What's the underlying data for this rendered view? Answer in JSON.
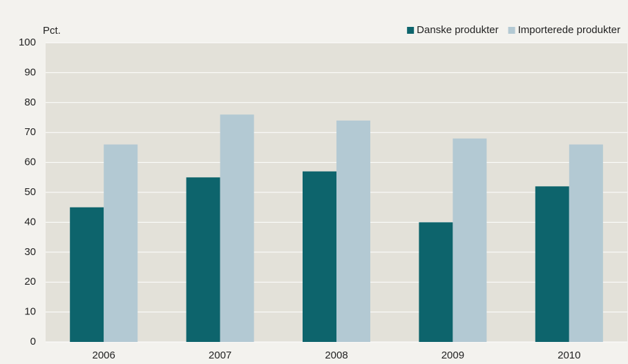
{
  "chart_data": {
    "type": "bar",
    "y_label": "Pct.",
    "categories": [
      "2006",
      "2007",
      "2008",
      "2009",
      "2010"
    ],
    "series": [
      {
        "name": "Danske produkter",
        "color": "#0d646c",
        "values": [
          45,
          55,
          57,
          40,
          52
        ]
      },
      {
        "name": "Importerede produkter",
        "color": "#b3c9d3",
        "values": [
          66,
          76,
          74,
          68,
          66
        ]
      }
    ],
    "ylim": [
      0,
      100
    ],
    "yticks": [
      0,
      10,
      20,
      30,
      40,
      50,
      60,
      70,
      80,
      90,
      100
    ],
    "grid": true,
    "legend": "upper right"
  }
}
